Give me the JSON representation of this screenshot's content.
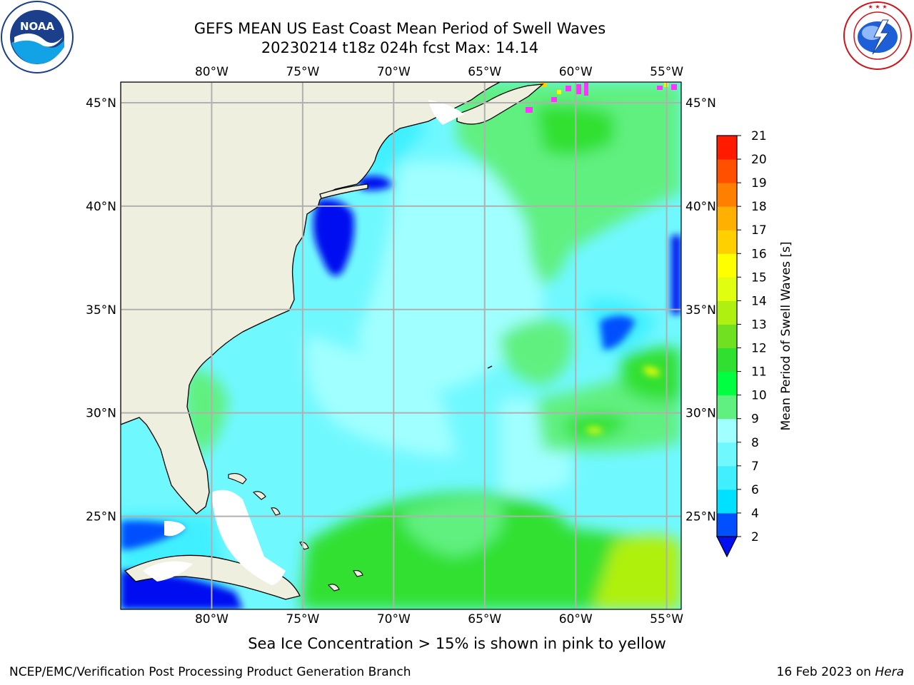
{
  "header": {
    "title_line1": "GEFS MEAN US East Coast Mean Period of Swell Waves",
    "title_line2": "20230214 t18z 024h fcst   Max: 14.14"
  },
  "logos": {
    "left": {
      "icon": "noaa-logo",
      "text": "NOAA",
      "ring_text": "NATIONAL OCEANIC AND ATMOSPHERIC ADMINISTRATION · U.S. DEPARTMENT OF COMMERCE"
    },
    "right": {
      "icon": "nws-logo",
      "ring_text": "NATIONAL WEATHER SERVICE"
    }
  },
  "map": {
    "lon_labels_top": [
      "80°W",
      "75°W",
      "70°W",
      "65°W",
      "60°W",
      "55°W"
    ],
    "lon_labels_bottom": [
      "80°W",
      "75°W",
      "70°W",
      "65°W",
      "60°W",
      "55°W"
    ],
    "lat_labels_left": [
      "45°N",
      "40°N",
      "35°N",
      "30°N",
      "25°N"
    ],
    "lat_labels_right": [
      "45°N",
      "40°N",
      "35°N",
      "30°N",
      "25°N"
    ],
    "lon_values": [
      -80,
      -75,
      -70,
      -65,
      -60,
      -55
    ],
    "lat_values": [
      45,
      40,
      35,
      30,
      25
    ],
    "lon_range": [
      -85,
      -54.2
    ],
    "lat_range": [
      20.5,
      46
    ],
    "grid": true,
    "colors": {
      "land": "#efefdf",
      "grid": "#b0b0b0"
    }
  },
  "colorbar": {
    "label": "Mean Period of Swell Waves [s]",
    "ticks": [
      "2",
      "4",
      "6",
      "7",
      "8",
      "9",
      "10",
      "11",
      "12",
      "13",
      "14",
      "15",
      "16",
      "17",
      "18",
      "19",
      "20",
      "21"
    ],
    "colors": [
      "#0050ff",
      "#00e0ff",
      "#40f0ff",
      "#70f8ff",
      "#a0ffff",
      "#60f080",
      "#00ff40",
      "#30e030",
      "#70e020",
      "#b0f010",
      "#e0ff10",
      "#ffff00",
      "#ffd000",
      "#ffb000",
      "#ff8000",
      "#ff5000",
      "#ff1a00"
    ],
    "extend_color": "#0010f0"
  },
  "caption": "Sea Ice Concentration > 15% is shown in pink to yellow",
  "footer": {
    "left": "NCEP/EMC/Verification Post Processing Product Generation Branch",
    "right_date": "16 Feb 2023 on ",
    "right_host": "Hera"
  }
}
